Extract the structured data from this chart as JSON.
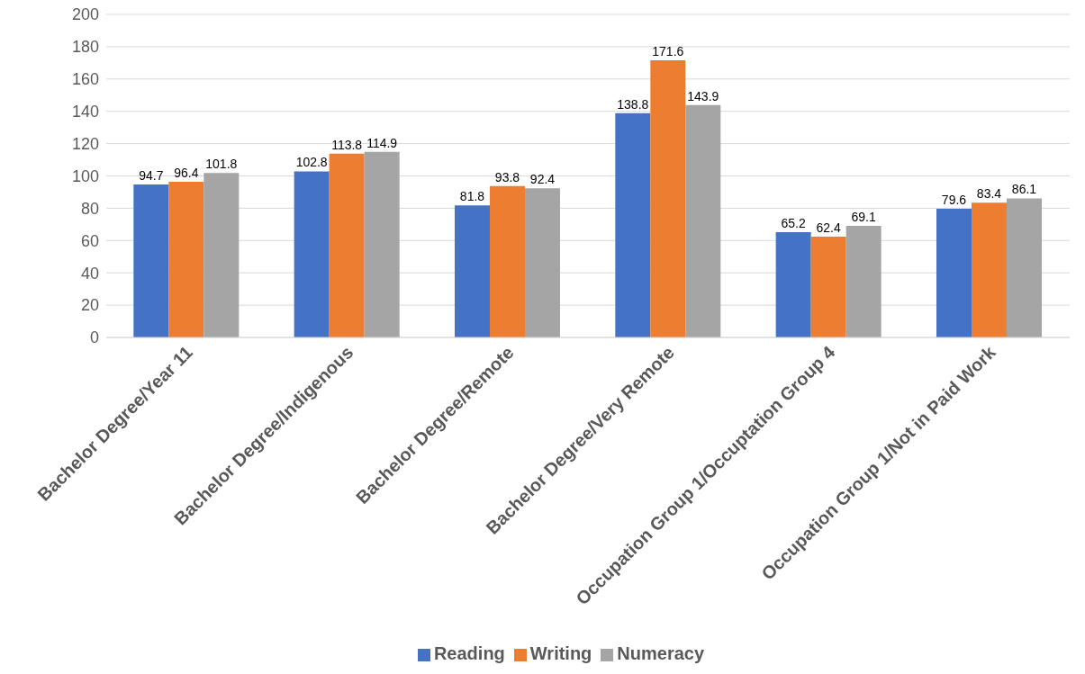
{
  "chart_data": {
    "type": "bar",
    "categories": [
      "Bachelor Degree/Year 11",
      "Bachelor Degree/Indigenous",
      "Bachelor Degree/Remote",
      "Bachelor Degree/Very Remote",
      "Occupation Group 1/Occuptation Group 4",
      "Occupation Group 1/Not in Paid Work"
    ],
    "series": [
      {
        "name": "Reading",
        "color": "#4472c4",
        "values": [
          94.7,
          102.8,
          81.8,
          138.8,
          65.2,
          79.6
        ]
      },
      {
        "name": "Writing",
        "color": "#ed7d31",
        "values": [
          96.4,
          113.8,
          93.8,
          171.6,
          62.4,
          83.4
        ]
      },
      {
        "name": "Numeracy",
        "color": "#a5a5a5",
        "values": [
          101.8,
          114.9,
          92.4,
          143.9,
          69.1,
          86.1
        ]
      }
    ],
    "ylim": [
      0,
      200
    ],
    "yticks": [
      0,
      20,
      40,
      60,
      80,
      100,
      120,
      140,
      160,
      180,
      200
    ],
    "grid": "y",
    "legend": "bottom",
    "data_labels": true
  }
}
